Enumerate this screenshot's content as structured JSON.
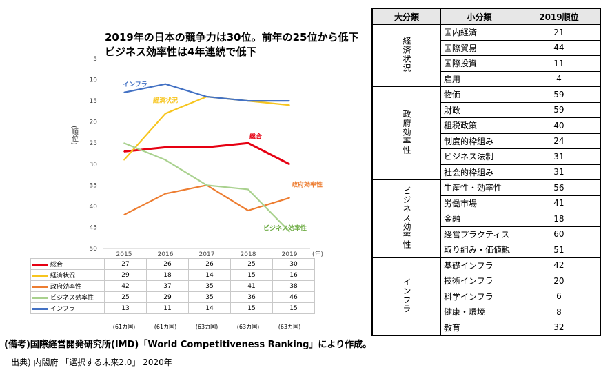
{
  "title": {
    "line1": "2019年の日本の競争力は30位。前年の25位から低下",
    "line2": "ビジネス効率性は4年連続で低下"
  },
  "chart_data": {
    "type": "line",
    "x": [
      2015,
      2016,
      2017,
      2018,
      2019
    ],
    "x_unit": "(年)",
    "ylabel": "(順位)",
    "ylim": [
      5,
      50
    ],
    "y_ticks": [
      5,
      10,
      15,
      20,
      25,
      30,
      35,
      40,
      45,
      50
    ],
    "y_reversed": true,
    "series": [
      {
        "name": "総合",
        "color": "#e60012",
        "values": [
          27,
          26,
          26,
          25,
          30
        ]
      },
      {
        "name": "経済状況",
        "color": "#f7c51e",
        "values": [
          29,
          18,
          14,
          15,
          16
        ]
      },
      {
        "name": "政府効率性",
        "color": "#ed7d31",
        "values": [
          42,
          37,
          35,
          41,
          38
        ]
      },
      {
        "name": "ビジネス効率性",
        "color": "#a9d18e",
        "values": [
          25,
          29,
          35,
          36,
          46
        ]
      },
      {
        "name": "インフラ",
        "color": "#4472c4",
        "values": [
          13,
          11,
          14,
          15,
          15
        ]
      }
    ],
    "country_counts": [
      "(61カ国)",
      "(61カ国)",
      "(63カ国)",
      "(63カ国)",
      "(63カ国)"
    ]
  },
  "chart_labels": {
    "infra": "インフラ",
    "economy": "経済状況",
    "overall": "総合",
    "government": "政府効率性",
    "business": "ビジネス効率性"
  },
  "source": "(備考)国際経営開発研究所(IMD)「World Competitiveness Ranking」により作成。",
  "origin": "出典) 内閣府 「選択する未来2.0」 2020年",
  "rank_table": {
    "headers": [
      "大分類",
      "小分類",
      "2019順位"
    ],
    "groups": [
      {
        "major": "経済状況",
        "rows": [
          {
            "sub": "国内経済",
            "rank": "21"
          },
          {
            "sub": "国際貿易",
            "rank": "44"
          },
          {
            "sub": "国際投資",
            "rank": "11"
          },
          {
            "sub": "雇用",
            "rank": "4"
          }
        ]
      },
      {
        "major": "政府効率性",
        "rows": [
          {
            "sub": "物価",
            "rank": "59"
          },
          {
            "sub": "財政",
            "rank": "59"
          },
          {
            "sub": "租税政策",
            "rank": "40"
          },
          {
            "sub": "制度的枠組み",
            "rank": "24"
          },
          {
            "sub": "ビジネス法制",
            "rank": "31"
          },
          {
            "sub": "社会的枠組み",
            "rank": "31"
          }
        ]
      },
      {
        "major": "ビジネス効率性",
        "rows": [
          {
            "sub": "生産性・効率性",
            "rank": "56"
          },
          {
            "sub": "労働市場",
            "rank": "41"
          },
          {
            "sub": "金融",
            "rank": "18"
          },
          {
            "sub": "経営プラクティス",
            "rank": "60"
          },
          {
            "sub": "取り組み・価値観",
            "rank": "51"
          }
        ]
      },
      {
        "major": "インフラ",
        "rows": [
          {
            "sub": "基礎インフラ",
            "rank": "42"
          },
          {
            "sub": "技術インフラ",
            "rank": "20"
          },
          {
            "sub": "科学インフラ",
            "rank": "6"
          },
          {
            "sub": "健康・環境",
            "rank": "8"
          },
          {
            "sub": "教育",
            "rank": "32"
          }
        ]
      }
    ]
  }
}
